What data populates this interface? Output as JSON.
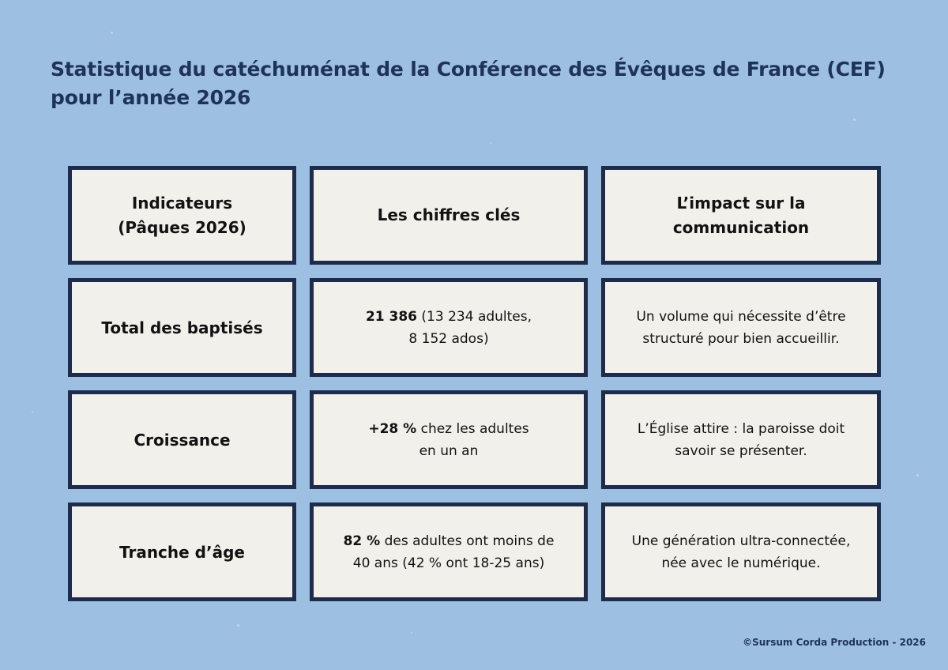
{
  "title": {
    "line1": "Statistique du catéchuménat de la Conférence des Évêques de France (CEF)",
    "line2": "pour l’année 2026"
  },
  "table": {
    "headers": [
      {
        "line1": "Indicateurs",
        "line2": "(Pâques 2026)"
      },
      {
        "line1": "Les chiffres clés",
        "line2": ""
      },
      {
        "line1": "L’impact sur la",
        "line2": "communication"
      }
    ],
    "rows": [
      {
        "indicator": "Total des baptisés",
        "figure_bold": "21 386",
        "figure_line1": " (13 234 adultes,",
        "figure_line2": "8 152 ados)",
        "impact_line1": "Un volume qui nécessite d’être",
        "impact_line2": "structuré pour bien accueillir."
      },
      {
        "indicator": "Croissance",
        "figure_bold": "+28 %",
        "figure_line1": " chez les adultes",
        "figure_line2": "en un an",
        "impact_line1": "L’Église attire : la paroisse doit",
        "impact_line2": "savoir se présenter."
      },
      {
        "indicator": "Tranche d’âge",
        "figure_bold": "82 %",
        "figure_line1": " des adultes ont moins de",
        "figure_line2": "40 ans (42 % ont 18-25 ans)",
        "impact_line1": "Une génération ultra-connectée,",
        "impact_line2": "née avec le numérique."
      }
    ]
  },
  "footer": {
    "credit": "©Sursum Corda Production - 2026"
  }
}
